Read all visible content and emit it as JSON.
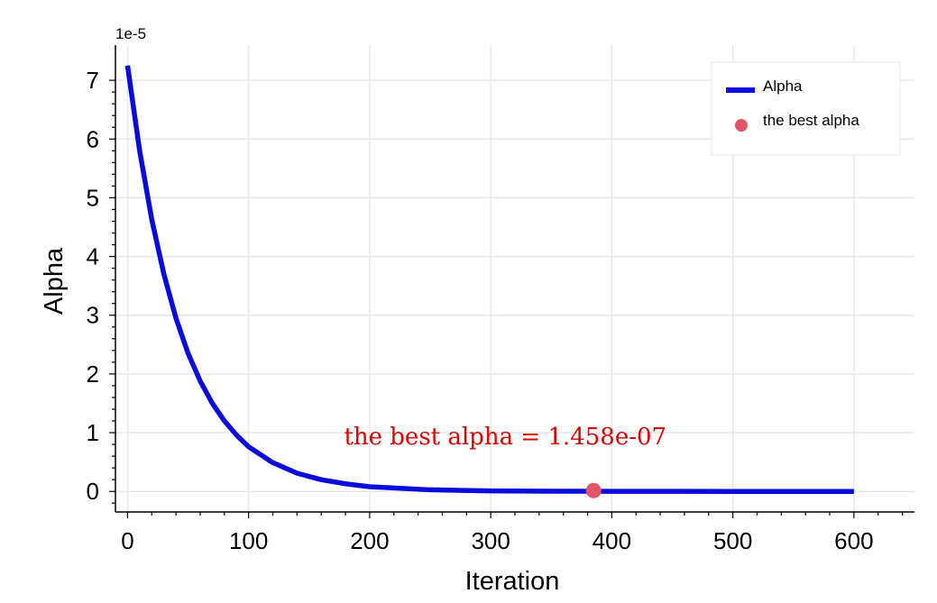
{
  "chart_data": {
    "type": "line",
    "title": "",
    "xlabel": "Iteration",
    "ylabel": "Alpha",
    "y_offset_label": "1e-5",
    "xlim": [
      -10,
      650
    ],
    "ylim": [
      -0.35,
      7.6
    ],
    "y_scale_factor": 1e-05,
    "xticks": [
      0,
      100,
      200,
      300,
      400,
      500,
      600
    ],
    "xtick_labels": [
      "0",
      "100",
      "200",
      "300",
      "400",
      "500",
      "600"
    ],
    "yticks": [
      0,
      1,
      2,
      3,
      4,
      5,
      6,
      7
    ],
    "ytick_labels": [
      "0",
      "1",
      "2",
      "3",
      "4",
      "5",
      "6",
      "7"
    ],
    "grid": true,
    "legend_position": "top-right",
    "series": [
      {
        "name": "Alpha",
        "color": "#0a0adc",
        "kind": "line",
        "x": [
          0,
          10,
          20,
          30,
          40,
          50,
          60,
          70,
          80,
          90,
          100,
          120,
          140,
          160,
          180,
          200,
          250,
          300,
          350,
          400,
          450,
          500,
          550,
          600
        ],
        "y": [
          7.25,
          5.8,
          4.63,
          3.7,
          2.95,
          2.35,
          1.88,
          1.5,
          1.2,
          0.96,
          0.76,
          0.49,
          0.31,
          0.2,
          0.13,
          0.08,
          0.027,
          0.009,
          0.003,
          0.001,
          0.0003,
          0.0001,
          4e-05,
          1e-05
        ]
      },
      {
        "name": "the best alpha",
        "color": "#e05567",
        "kind": "scatter",
        "x": [
          385
        ],
        "y": [
          0.01458
        ]
      }
    ],
    "annotations": [
      {
        "text": "the best alpha = 1.458e-07",
        "x": 312,
        "y": 0.8,
        "color": "#dc0000"
      }
    ]
  }
}
